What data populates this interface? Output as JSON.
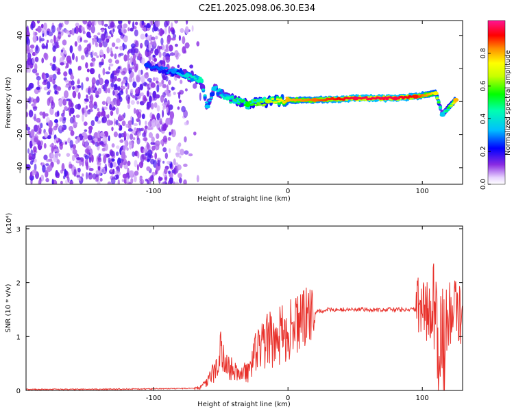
{
  "title": "C2E1.2025.098.06.30.E34",
  "chart_data": [
    {
      "type": "heatmap",
      "xlabel": "Height of straight line (km)",
      "ylabel": "Frequency (Hz)",
      "xlim": [
        -195,
        130
      ],
      "ylim": [
        -50,
        49
      ],
      "x_ticks": [
        -100,
        0,
        100
      ],
      "y_ticks": [
        -40,
        -20,
        0,
        20,
        40
      ],
      "colorbar": {
        "label": "Normalized spectral amplitude",
        "range": [
          0,
          1
        ],
        "ticks": [
          0.0,
          0.2,
          0.4,
          0.6,
          0.8
        ],
        "tick_labels": [
          "0.0",
          "0.2",
          "0.4",
          "0.6",
          "0.8"
        ],
        "colors": [
          "#ffffff",
          "#6a00ff",
          "#0000ff",
          "#00c8ff",
          "#00ff00",
          "#c8ff00",
          "#ffff00",
          "#ff8000",
          "#ff0000",
          "#ff0080"
        ]
      },
      "track": [
        {
          "x": -105,
          "f": 22,
          "amp": 0.25
        },
        {
          "x": -85,
          "f": 18,
          "amp": 0.3
        },
        {
          "x": -75,
          "f": 16,
          "amp": 0.4
        },
        {
          "x": -65,
          "f": 13,
          "amp": 0.45
        },
        {
          "x": -55,
          "f": 8,
          "amp": 0.35
        },
        {
          "x": -60,
          "f": -3,
          "amp": 0.35
        },
        {
          "x": -45,
          "f": 2,
          "amp": 0.45
        },
        {
          "x": -30,
          "f": -2,
          "amp": 0.55
        },
        {
          "x": -15,
          "f": 0,
          "amp": 0.65
        },
        {
          "x": 0,
          "f": 1,
          "amp": 0.8
        },
        {
          "x": 20,
          "f": 1,
          "amp": 0.85
        },
        {
          "x": 50,
          "f": 2,
          "amp": 0.95
        },
        {
          "x": 80,
          "f": 2,
          "amp": 0.95
        },
        {
          "x": 95,
          "f": 3,
          "amp": 0.9
        },
        {
          "x": 110,
          "f": 5,
          "amp": 0.75
        },
        {
          "x": 115,
          "f": -8,
          "amp": 0.35
        },
        {
          "x": 125,
          "f": 1,
          "amp": 0.8
        }
      ]
    },
    {
      "type": "line",
      "xlabel": "Height of straight line (km)",
      "ylabel": "SNR (10 * v/v)",
      "y_multiplier": "(x10⁴)",
      "xlim": [
        -195,
        130
      ],
      "ylim": [
        0,
        3.05
      ],
      "x_ticks": [
        -100,
        0,
        100
      ],
      "y_ticks": [
        0,
        1,
        2,
        3
      ],
      "color": "#e8302a",
      "series": [
        {
          "x": [
            -195,
            -150,
            -100,
            -70,
            -65,
            -60,
            -55,
            -52,
            -50,
            -48,
            -45,
            -40,
            -35,
            -30,
            -28,
            -25,
            -20,
            -18,
            -15,
            -10,
            -5,
            0,
            5,
            10,
            15,
            20,
            30,
            40,
            50,
            60,
            70,
            80,
            90,
            95,
            100,
            105,
            108,
            110,
            112,
            113,
            114,
            115,
            116,
            118,
            120,
            125,
            130
          ],
          "y": [
            0.02,
            0.02,
            0.03,
            0.04,
            0.06,
            0.15,
            0.35,
            0.6,
            0.8,
            0.55,
            0.45,
            0.35,
            0.3,
            0.35,
            0.55,
            0.65,
            0.8,
            0.95,
            0.9,
            0.95,
            1.05,
            1.1,
            1.2,
            1.3,
            1.38,
            1.45,
            1.5,
            1.5,
            1.5,
            1.5,
            1.5,
            1.5,
            1.5,
            1.5,
            1.5,
            1.45,
            1.35,
            1.2,
            1.0,
            0.8,
            0.6,
            0.5,
            0.6,
            1.2,
            1.45,
            1.45,
            1.42
          ]
        }
      ]
    }
  ]
}
